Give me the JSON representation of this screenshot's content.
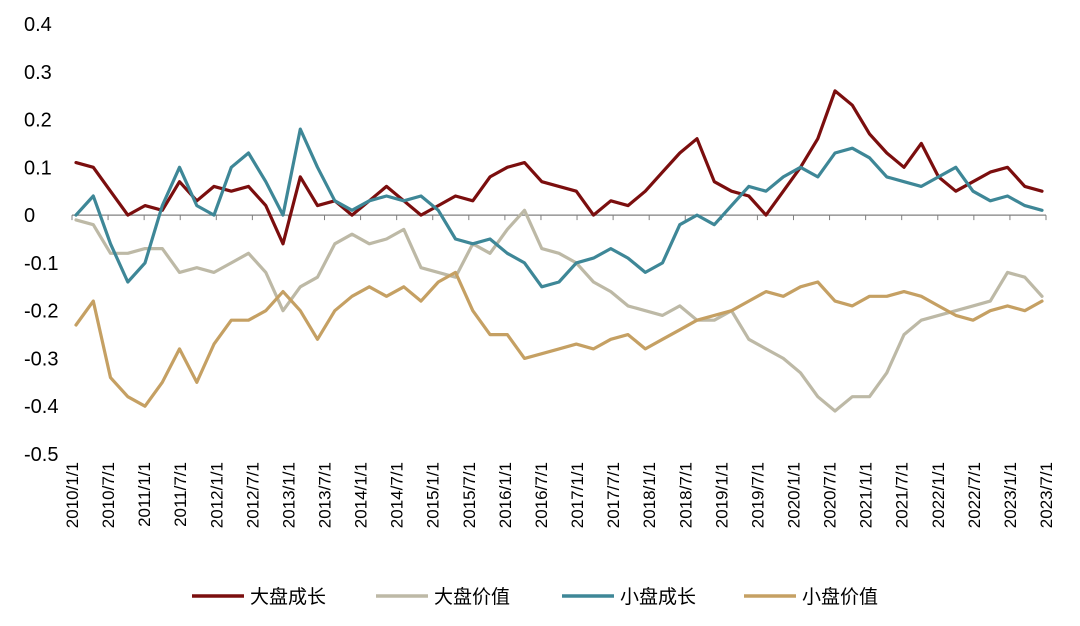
{
  "chart_data": {
    "type": "line",
    "title": "",
    "xlabel": "",
    "ylabel": "",
    "ylim": [
      -0.5,
      0.4
    ],
    "yticks": [
      "0.4",
      "0.3",
      "0.2",
      "0.1",
      "0",
      "-0.1",
      "-0.2",
      "-0.3",
      "-0.4",
      "-0.5"
    ],
    "xtick_labels": [
      "2010/1/1",
      "2010/7/1",
      "2011/1/1",
      "2011/7/1",
      "2012/1/1",
      "2012/7/1",
      "2013/1/1",
      "2013/7/1",
      "2014/1/1",
      "2014/7/1",
      "2015/1/1",
      "2015/7/1",
      "2016/1/1",
      "2016/7/1",
      "2017/1/1",
      "2017/7/1",
      "2018/1/1",
      "2018/7/1",
      "2019/1/1",
      "2019/7/1",
      "2020/1/1",
      "2020/7/1",
      "2021/1/1",
      "2021/7/1",
      "2022/1/1",
      "2022/7/1",
      "2023/1/1",
      "2023/7/1"
    ],
    "grid": false,
    "legend_position": "bottom",
    "series": [
      {
        "name": "大盘成长",
        "color": "#7B0E0E",
        "points": [
          [
            0,
            0.11
          ],
          [
            1,
            0.1
          ],
          [
            2,
            0.05
          ],
          [
            3,
            0.0
          ],
          [
            4,
            0.02
          ],
          [
            5,
            0.01
          ],
          [
            6,
            0.07
          ],
          [
            7,
            0.03
          ],
          [
            8,
            0.06
          ],
          [
            9,
            0.05
          ],
          [
            10,
            0.06
          ],
          [
            11,
            0.02
          ],
          [
            12,
            -0.06
          ],
          [
            13,
            0.08
          ],
          [
            14,
            0.02
          ],
          [
            15,
            0.03
          ],
          [
            16,
            0.0
          ],
          [
            17,
            0.03
          ],
          [
            18,
            0.06
          ],
          [
            19,
            0.03
          ],
          [
            20,
            0.0
          ],
          [
            21,
            0.02
          ],
          [
            22,
            0.04
          ],
          [
            23,
            0.03
          ],
          [
            24,
            0.08
          ],
          [
            25,
            0.1
          ],
          [
            26,
            0.11
          ],
          [
            27,
            0.07
          ],
          [
            28,
            0.06
          ],
          [
            29,
            0.05
          ],
          [
            30,
            0.0
          ],
          [
            31,
            0.03
          ],
          [
            32,
            0.02
          ],
          [
            33,
            0.05
          ],
          [
            34,
            0.09
          ],
          [
            35,
            0.13
          ],
          [
            36,
            0.16
          ],
          [
            37,
            0.07
          ],
          [
            38,
            0.05
          ],
          [
            39,
            0.04
          ],
          [
            40,
            0.0
          ],
          [
            41,
            0.05
          ],
          [
            42,
            0.1
          ],
          [
            43,
            0.16
          ],
          [
            44,
            0.26
          ],
          [
            45,
            0.23
          ],
          [
            46,
            0.17
          ],
          [
            47,
            0.13
          ],
          [
            48,
            0.1
          ],
          [
            49,
            0.15
          ],
          [
            50,
            0.08
          ],
          [
            51,
            0.05
          ],
          [
            52,
            0.07
          ],
          [
            53,
            0.09
          ],
          [
            54,
            0.1
          ],
          [
            55,
            0.06
          ],
          [
            56,
            0.05
          ]
        ]
      },
      {
        "name": "大盘价值",
        "color": "#BDB9A6",
        "points": [
          [
            0,
            -0.01
          ],
          [
            1,
            -0.02
          ],
          [
            2,
            -0.08
          ],
          [
            3,
            -0.08
          ],
          [
            4,
            -0.07
          ],
          [
            5,
            -0.07
          ],
          [
            6,
            -0.12
          ],
          [
            7,
            -0.11
          ],
          [
            8,
            -0.12
          ],
          [
            9,
            -0.1
          ],
          [
            10,
            -0.08
          ],
          [
            11,
            -0.12
          ],
          [
            12,
            -0.2
          ],
          [
            13,
            -0.15
          ],
          [
            14,
            -0.13
          ],
          [
            15,
            -0.06
          ],
          [
            16,
            -0.04
          ],
          [
            17,
            -0.06
          ],
          [
            18,
            -0.05
          ],
          [
            19,
            -0.03
          ],
          [
            20,
            -0.11
          ],
          [
            21,
            -0.12
          ],
          [
            22,
            -0.13
          ],
          [
            23,
            -0.06
          ],
          [
            24,
            -0.08
          ],
          [
            25,
            -0.03
          ],
          [
            26,
            0.01
          ],
          [
            27,
            -0.07
          ],
          [
            28,
            -0.08
          ],
          [
            29,
            -0.1
          ],
          [
            30,
            -0.14
          ],
          [
            31,
            -0.16
          ],
          [
            32,
            -0.19
          ],
          [
            33,
            -0.2
          ],
          [
            34,
            -0.21
          ],
          [
            35,
            -0.19
          ],
          [
            36,
            -0.22
          ],
          [
            37,
            -0.22
          ],
          [
            38,
            -0.2
          ],
          [
            39,
            -0.26
          ],
          [
            40,
            -0.28
          ],
          [
            41,
            -0.3
          ],
          [
            42,
            -0.33
          ],
          [
            43,
            -0.38
          ],
          [
            44,
            -0.41
          ],
          [
            45,
            -0.38
          ],
          [
            46,
            -0.38
          ],
          [
            47,
            -0.33
          ],
          [
            48,
            -0.25
          ],
          [
            49,
            -0.22
          ],
          [
            50,
            -0.21
          ],
          [
            51,
            -0.2
          ],
          [
            52,
            -0.19
          ],
          [
            53,
            -0.18
          ],
          [
            54,
            -0.12
          ],
          [
            55,
            -0.13
          ],
          [
            56,
            -0.17
          ]
        ]
      },
      {
        "name": "小盘成长",
        "color": "#3E8797",
        "points": [
          [
            0,
            0.0
          ],
          [
            1,
            0.04
          ],
          [
            2,
            -0.06
          ],
          [
            3,
            -0.14
          ],
          [
            4,
            -0.1
          ],
          [
            5,
            0.02
          ],
          [
            6,
            0.1
          ],
          [
            7,
            0.02
          ],
          [
            8,
            0.0
          ],
          [
            9,
            0.1
          ],
          [
            10,
            0.13
          ],
          [
            11,
            0.07
          ],
          [
            12,
            0.0
          ],
          [
            13,
            0.18
          ],
          [
            14,
            0.1
          ],
          [
            15,
            0.03
          ],
          [
            16,
            0.01
          ],
          [
            17,
            0.03
          ],
          [
            18,
            0.04
          ],
          [
            19,
            0.03
          ],
          [
            20,
            0.04
          ],
          [
            21,
            0.01
          ],
          [
            22,
            -0.05
          ],
          [
            23,
            -0.06
          ],
          [
            24,
            -0.05
          ],
          [
            25,
            -0.08
          ],
          [
            26,
            -0.1
          ],
          [
            27,
            -0.15
          ],
          [
            28,
            -0.14
          ],
          [
            29,
            -0.1
          ],
          [
            30,
            -0.09
          ],
          [
            31,
            -0.07
          ],
          [
            32,
            -0.09
          ],
          [
            33,
            -0.12
          ],
          [
            34,
            -0.1
          ],
          [
            35,
            -0.02
          ],
          [
            36,
            0.0
          ],
          [
            37,
            -0.02
          ],
          [
            38,
            0.02
          ],
          [
            39,
            0.06
          ],
          [
            40,
            0.05
          ],
          [
            41,
            0.08
          ],
          [
            42,
            0.1
          ],
          [
            43,
            0.08
          ],
          [
            44,
            0.13
          ],
          [
            45,
            0.14
          ],
          [
            46,
            0.12
          ],
          [
            47,
            0.08
          ],
          [
            48,
            0.07
          ],
          [
            49,
            0.06
          ],
          [
            50,
            0.08
          ],
          [
            51,
            0.1
          ],
          [
            52,
            0.05
          ],
          [
            53,
            0.03
          ],
          [
            54,
            0.04
          ],
          [
            55,
            0.02
          ],
          [
            56,
            0.01
          ]
        ]
      },
      {
        "name": "小盘价值",
        "color": "#C5A063",
        "points": [
          [
            0,
            -0.23
          ],
          [
            1,
            -0.18
          ],
          [
            2,
            -0.34
          ],
          [
            3,
            -0.38
          ],
          [
            4,
            -0.4
          ],
          [
            5,
            -0.35
          ],
          [
            6,
            -0.28
          ],
          [
            7,
            -0.35
          ],
          [
            8,
            -0.27
          ],
          [
            9,
            -0.22
          ],
          [
            10,
            -0.22
          ],
          [
            11,
            -0.2
          ],
          [
            12,
            -0.16
          ],
          [
            13,
            -0.2
          ],
          [
            14,
            -0.26
          ],
          [
            15,
            -0.2
          ],
          [
            16,
            -0.17
          ],
          [
            17,
            -0.15
          ],
          [
            18,
            -0.17
          ],
          [
            19,
            -0.15
          ],
          [
            20,
            -0.18
          ],
          [
            21,
            -0.14
          ],
          [
            22,
            -0.12
          ],
          [
            23,
            -0.2
          ],
          [
            24,
            -0.25
          ],
          [
            25,
            -0.25
          ],
          [
            26,
            -0.3
          ],
          [
            27,
            -0.29
          ],
          [
            28,
            -0.28
          ],
          [
            29,
            -0.27
          ],
          [
            30,
            -0.28
          ],
          [
            31,
            -0.26
          ],
          [
            32,
            -0.25
          ],
          [
            33,
            -0.28
          ],
          [
            34,
            -0.26
          ],
          [
            35,
            -0.24
          ],
          [
            36,
            -0.22
          ],
          [
            37,
            -0.21
          ],
          [
            38,
            -0.2
          ],
          [
            39,
            -0.18
          ],
          [
            40,
            -0.16
          ],
          [
            41,
            -0.17
          ],
          [
            42,
            -0.15
          ],
          [
            43,
            -0.14
          ],
          [
            44,
            -0.18
          ],
          [
            45,
            -0.19
          ],
          [
            46,
            -0.17
          ],
          [
            47,
            -0.17
          ],
          [
            48,
            -0.16
          ],
          [
            49,
            -0.17
          ],
          [
            50,
            -0.19
          ],
          [
            51,
            -0.21
          ],
          [
            52,
            -0.22
          ],
          [
            53,
            -0.2
          ],
          [
            54,
            -0.19
          ],
          [
            55,
            -0.2
          ],
          [
            56,
            -0.18
          ]
        ]
      }
    ]
  }
}
